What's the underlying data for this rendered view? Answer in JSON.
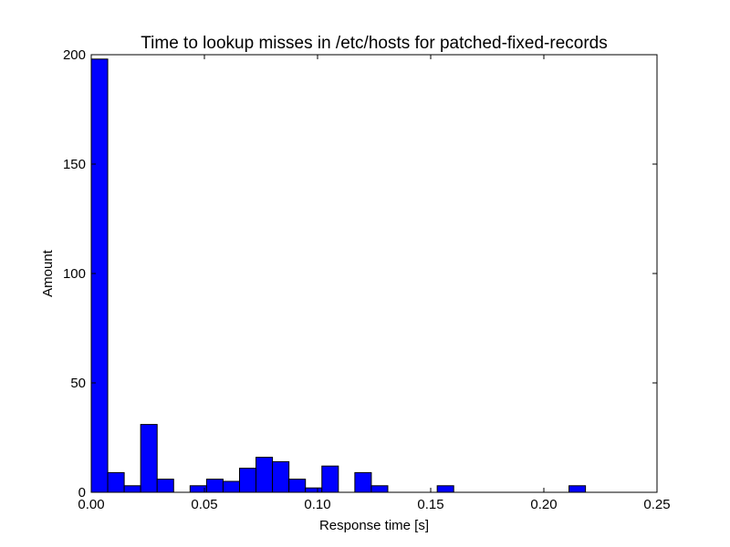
{
  "chart_data": {
    "type": "bar",
    "title": "Time to lookup misses in /etc/hosts for patched-fixed-records",
    "xlabel": "Response time [s]",
    "ylabel": "Amount",
    "xlim": [
      0,
      0.25
    ],
    "ylim": [
      0,
      200
    ],
    "grid": false,
    "bar_color": "#0000ff",
    "edge_color": "#000000",
    "x_ticks": [
      "0.00",
      "0.05",
      "0.10",
      "0.15",
      "0.20",
      "0.25"
    ],
    "x_tick_values": [
      0,
      0.05,
      0.1,
      0.15,
      0.2,
      0.25
    ],
    "y_ticks": [
      "0",
      "50",
      "100",
      "150",
      "200"
    ],
    "y_tick_values": [
      0,
      50,
      100,
      150,
      200
    ],
    "bin_start": 0.0,
    "bin_width": 0.00728,
    "values": [
      198,
      9,
      3,
      31,
      6,
      0,
      3,
      6,
      5,
      11,
      16,
      14,
      6,
      2,
      12,
      0,
      9,
      3,
      0,
      0,
      0,
      3,
      0,
      0,
      0,
      0,
      0,
      0,
      0,
      3
    ]
  }
}
